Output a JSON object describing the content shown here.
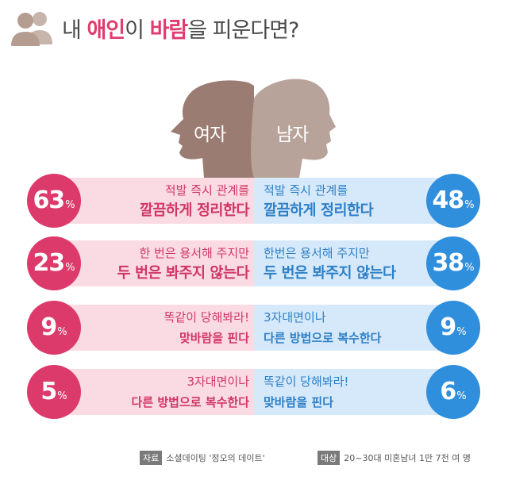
{
  "header": {
    "title_parts": [
      "내 ",
      "애인",
      "이 ",
      "바람",
      "을 피운다면?"
    ]
  },
  "chart_data": {
    "type": "bar",
    "series": [
      {
        "name": "여자",
        "values": [
          63,
          23,
          9,
          5
        ],
        "labels": [
          [
            "적발 즉시 관계를",
            "깔끔하게 정리한다"
          ],
          [
            "한 번은 용서해 주지만",
            "두 번은 봐주지 않는다"
          ],
          [
            "똑같이 당해봐라!",
            "맞바람을 핀다"
          ],
          [
            "3자대면이나",
            "다른 방법으로 복수한다"
          ]
        ]
      },
      {
        "name": "남자",
        "values": [
          48,
          38,
          9,
          6
        ],
        "labels": [
          [
            "적발 즉시 관계를",
            "깔끔하게 정리한다"
          ],
          [
            "한번은 용서해 주지만",
            "두 번은 봐주지 않는다"
          ],
          [
            "3자대면이나",
            "다른 방법으로 복수한다"
          ],
          [
            "똑같이 당해봐라!",
            "맞바람을 핀다"
          ]
        ]
      }
    ],
    "unit": "%"
  },
  "rows": {
    "pct_suffix": "%",
    "left": [
      {
        "value": "63",
        "line1": "적발 즉시 관계를",
        "line2": "깔끔하게 정리한다"
      },
      {
        "value": "23",
        "line1": "한 번은 용서해 주지만",
        "line2": "두 번은 봐주지 않는다"
      },
      {
        "value": "9",
        "line1": "똑같이 당해봐라!",
        "line2": "맞바람을 핀다"
      },
      {
        "value": "5",
        "line1": "3자대면이나",
        "line2": "다른 방법으로 복수한다"
      }
    ],
    "right": [
      {
        "value": "48",
        "line1": "적발 즉시 관계를",
        "line2": "깔끔하게 정리한다"
      },
      {
        "value": "38",
        "line1": "한번은 용서해 주지만",
        "line2": "두 번은 봐주지 않는다"
      },
      {
        "value": "9",
        "line1": "3자대면이나",
        "line2": "다른 방법으로 복수한다"
      },
      {
        "value": "6",
        "line1": "똑같이 당해봐라!",
        "line2": "맞바람을 핀다"
      }
    ]
  },
  "heads": {
    "female": "여자",
    "male": "남자"
  },
  "footer": {
    "source_tag": "자료",
    "source": "소셜데이팅 '정오의 데이트'",
    "target_tag": "대상",
    "target": "20~30대 미혼남녀 1만 7천 여 명"
  },
  "colors": {
    "pink": "#dc3a6b",
    "blue": "#2f8fdd",
    "title": "#e03c6f"
  },
  "icons": [
    "couple-icon",
    "female-head-silhouette",
    "male-head-silhouette"
  ]
}
